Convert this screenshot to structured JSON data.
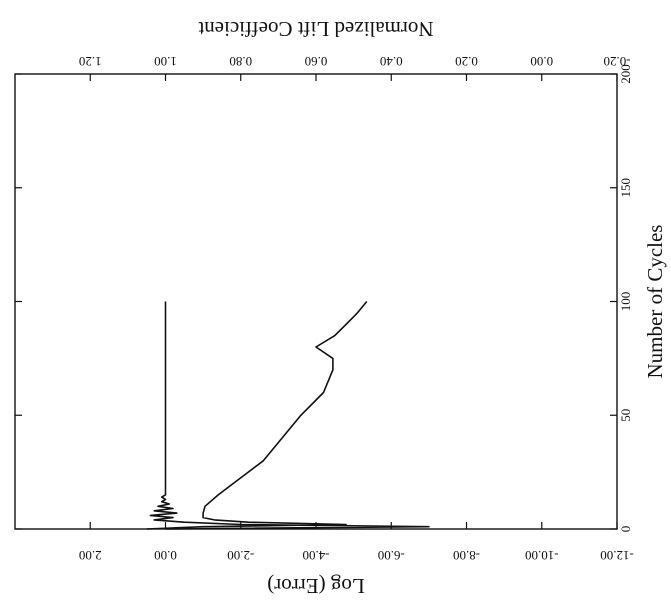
{
  "chart_data": {
    "type": "line",
    "orientation": "rotated-90",
    "title": "",
    "xlabel": "Number of Cycles",
    "x_range": [
      0,
      200
    ],
    "x_ticks": [
      "0",
      "50",
      "100",
      "150",
      "200"
    ],
    "left_axis": {
      "label": "Log (Error)",
      "range": [
        -12,
        4
      ],
      "ticks": [
        "2.00",
        "0.00",
        "-2.00",
        "-4.00",
        "-6.00",
        "-8.00",
        "-10.00",
        "-12.00"
      ],
      "tick_values": [
        2,
        0,
        -2,
        -4,
        -6,
        -8,
        -10,
        -12
      ]
    },
    "right_axis": {
      "label": "Normalized Lift Coefficient",
      "range": [
        -0.2,
        1.4
      ],
      "ticks": [
        "1.20",
        "1.00",
        "0.80",
        "0.60",
        "0.40",
        "0.20",
        "0.00",
        "-0.20"
      ],
      "tick_values": [
        1.2,
        1.0,
        0.8,
        0.6,
        0.4,
        0.2,
        0.0,
        -0.2
      ]
    },
    "series": [
      {
        "axis": "left",
        "x": [
          0,
          1,
          2,
          3,
          4,
          5,
          7,
          10,
          15,
          20,
          25,
          30,
          40,
          50,
          60,
          70,
          75,
          80,
          85,
          90,
          95,
          100
        ],
        "values": [
          0.5,
          -1.0,
          -4.8,
          -2.2,
          -1.3,
          -1.0,
          -1.0,
          -1.05,
          -1.4,
          -1.8,
          -2.2,
          -2.6,
          -3.1,
          -3.6,
          -4.2,
          -4.45,
          -4.45,
          -4.0,
          -4.5,
          -4.8,
          -5.1,
          -5.35
        ]
      },
      {
        "axis": "right",
        "x": [
          0,
          1,
          2,
          3,
          4,
          5,
          6,
          7,
          8,
          9,
          10,
          11,
          12,
          13,
          14,
          15,
          18,
          20,
          25,
          30,
          50,
          75,
          100
        ],
        "values": [
          1.0,
          0.3,
          0.8,
          0.95,
          1.03,
          0.98,
          1.04,
          0.97,
          1.03,
          0.98,
          1.02,
          0.99,
          1.01,
          1.0,
          1.01,
          1.0,
          1.0,
          1.0,
          1.0,
          1.0,
          1.0,
          1.0,
          1.0
        ]
      }
    ]
  }
}
